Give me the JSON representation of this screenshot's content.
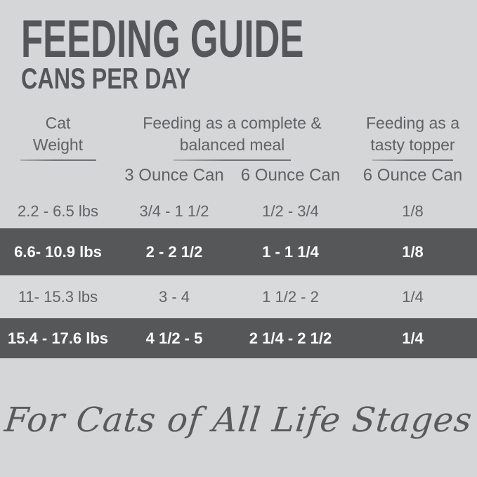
{
  "page": {
    "title": "FEEDING GUIDE",
    "subtitle": "CANS PER DAY",
    "footer_script": "For Cats of All Life Stages"
  },
  "table": {
    "column_groups": [
      {
        "line1": "Cat",
        "line2": "Weight"
      },
      {
        "line1": "Feeding as a complete &",
        "line2": "balanced meal"
      },
      {
        "line1": "Feeding as a",
        "line2": "tasty topper"
      }
    ],
    "subheaders": [
      "3 Ounce Can",
      "6 Ounce Can",
      "6 Ounce Can"
    ],
    "rows": [
      {
        "highlight": false,
        "cells": [
          "2.2 - 6.5 lbs",
          "3/4 - 1 1/2",
          "1/2 - 3/4",
          "1/8"
        ]
      },
      {
        "highlight": true,
        "cells": [
          "6.6- 10.9 lbs",
          "2 - 2 1/2",
          "1 - 1 1/4",
          "1/8"
        ]
      },
      {
        "highlight": false,
        "cells": [
          "11- 15.3 lbs",
          "3 - 4",
          "1 1/2 - 2",
          "1/4"
        ]
      },
      {
        "highlight": true,
        "cells": [
          "15.4 - 17.6 lbs",
          "4 1/2 - 5",
          "2 1/4 - 2 1/2",
          "1/4"
        ]
      }
    ]
  },
  "colors": {
    "background": "#d5d6d7",
    "light_row": "#d9dadb",
    "dark_band": "#565759",
    "title_text": "#555659",
    "header_text": "#616265",
    "body_text": "#626366",
    "dark_band_text": "#fbfbfc"
  },
  "chart_data": {
    "type": "table",
    "title": "FEEDING GUIDE",
    "subtitle": "CANS PER DAY",
    "column_groups": [
      "Cat Weight",
      "Feeding as a complete & balanced meal",
      "Feeding as a tasty topper"
    ],
    "columns": [
      "Cat Weight",
      "3 Ounce Can",
      "6 Ounce Can",
      "6 Ounce Can"
    ],
    "rows": [
      [
        "2.2 - 6.5 lbs",
        "3/4 - 1 1/2",
        "1/2 - 3/4",
        "1/8"
      ],
      [
        "6.6- 10.9 lbs",
        "2 - 2 1/2",
        "1 - 1 1/4",
        "1/8"
      ],
      [
        "11- 15.3 lbs",
        "3 - 4",
        "1 1/2 - 2",
        "1/4"
      ],
      [
        "15.4 - 17.6 lbs",
        "4 1/2 - 5",
        "2 1/4 - 2 1/2",
        "1/4"
      ]
    ],
    "annotations": [
      "For Cats of All Life Stages"
    ]
  }
}
